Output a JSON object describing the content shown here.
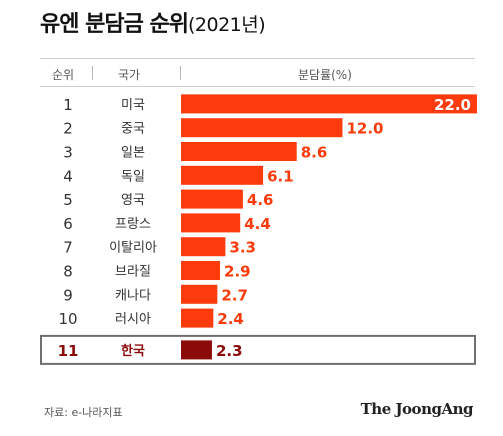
{
  "title": {
    "main": "유엔 분담금 순위",
    "sub": "(2021년)"
  },
  "headers": {
    "rank": "순위",
    "country": "국가",
    "share": "분담률(%)"
  },
  "colors": {
    "bar": "#fb3b0b",
    "highlight_bar": "#8b0a0a",
    "highlight_text": "#8b0a0a",
    "value_text": "#fb3b0b"
  },
  "chart_data": {
    "type": "bar",
    "orientation": "horizontal",
    "ylabel": "분담률(%)",
    "xlim": [
      0,
      22.0
    ],
    "highlight": "한국",
    "rows": [
      {
        "rank": "1",
        "country": "미국",
        "value": 22.0,
        "label": "22.0"
      },
      {
        "rank": "2",
        "country": "중국",
        "value": 12.0,
        "label": "12.0"
      },
      {
        "rank": "3",
        "country": "일본",
        "value": 8.6,
        "label": "8.6"
      },
      {
        "rank": "4",
        "country": "독일",
        "value": 6.1,
        "label": "6.1"
      },
      {
        "rank": "5",
        "country": "영국",
        "value": 4.6,
        "label": "4.6"
      },
      {
        "rank": "6",
        "country": "프랑스",
        "value": 4.4,
        "label": "4.4"
      },
      {
        "rank": "7",
        "country": "이탈리아",
        "value": 3.3,
        "label": "3.3"
      },
      {
        "rank": "8",
        "country": "브라질",
        "value": 2.9,
        "label": "2.9"
      },
      {
        "rank": "9",
        "country": "캐나다",
        "value": 2.7,
        "label": "2.7"
      },
      {
        "rank": "10",
        "country": "러시아",
        "value": 2.4,
        "label": "2.4"
      },
      {
        "rank": "11",
        "country": "한국",
        "value": 2.3,
        "label": "2.3"
      }
    ]
  },
  "footer": {
    "source": "자료: e-나라지표",
    "logo": "The JoongAng"
  }
}
